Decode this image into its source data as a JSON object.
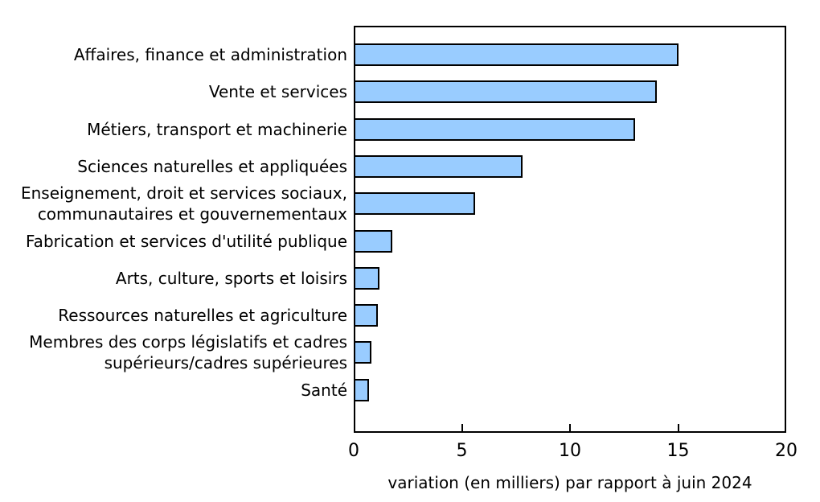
{
  "chart_data": {
    "type": "bar",
    "orientation": "horizontal",
    "xlabel": "variation (en milliers) par rapport à juin 2024",
    "xlim": [
      0,
      20
    ],
    "xticks": [
      0,
      5,
      10,
      15,
      20
    ],
    "grid": false,
    "bar_color": "#99CCFF",
    "bar_border_color": "#000000",
    "categories": [
      "Affaires, finance et administration",
      "Vente et services",
      "Métiers, transport et machinerie",
      "Sciences naturelles et appliquées",
      "Enseignement, droit et services sociaux,\ncommunautaires et gouvernementaux",
      "Fabrication et services d'utilité publique",
      "Arts, culture, sports et loisirs",
      "Ressources naturelles et agriculture",
      "Membres des corps législatifs et cadres\nsupérieurs/cadres supérieures",
      "Santé"
    ],
    "values": [
      15,
      14,
      13,
      7.8,
      5.6,
      1.8,
      1.2,
      1.1,
      0.8,
      0.7
    ]
  }
}
